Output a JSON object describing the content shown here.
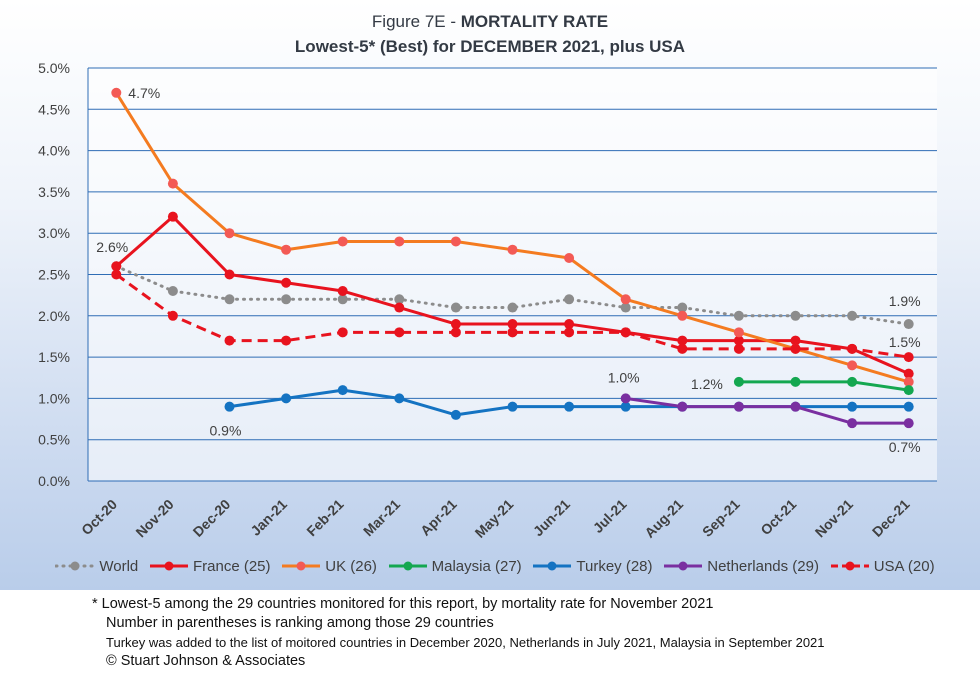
{
  "title_line1_prefix": "Figure 7E  - ",
  "title_line1_bold": "MORTALITY RATE",
  "title_line2": "Lowest-5* (Best) for DECEMBER 2021, plus USA",
  "notes": {
    "line1": "* Lowest-5 among the 29 countries monitored for this report, by mortality rate for November 2021",
    "line2": "Number in parentheses is ranking among those 29 countries",
    "line3": "Turkey was added to the list of moitored countries in December 2020, Netherlands in July 2021,  Malaysia in September 2021",
    "line4": "© Stuart Johnson & Associates"
  },
  "chart_data": {
    "type": "line",
    "categories": [
      "Oct-20",
      "Nov-20",
      "Dec-20",
      "Jan-21",
      "Feb-21",
      "Mar-21",
      "Apr-21",
      "May-21",
      "Jun-21",
      "Jul-21",
      "Aug-21",
      "Sep-21",
      "Oct-21",
      "Nov-21",
      "Dec-21"
    ],
    "ylim": [
      0,
      5.0
    ],
    "y_ticks": [
      "0.0%",
      "0.5%",
      "1.0%",
      "1.5%",
      "2.0%",
      "2.5%",
      "3.0%",
      "3.5%",
      "4.0%",
      "4.5%",
      "5.0%"
    ],
    "grid": true,
    "legend_position": "bottom",
    "series": [
      {
        "name": "World",
        "color": "#8c8c8c",
        "style": "dotted",
        "values": [
          2.6,
          2.3,
          2.2,
          2.2,
          2.2,
          2.2,
          2.1,
          2.1,
          2.2,
          2.1,
          2.1,
          2.0,
          2.0,
          2.0,
          1.9
        ]
      },
      {
        "name": "France (25)",
        "color": "#e8131e",
        "style": "solid",
        "values": [
          2.6,
          3.2,
          2.5,
          2.4,
          2.3,
          2.1,
          1.9,
          1.9,
          1.9,
          1.8,
          1.7,
          1.7,
          1.7,
          1.6,
          1.3
        ]
      },
      {
        "name": "UK (26)",
        "color": "#f47b20",
        "marker_color": "#f35a55",
        "style": "solid",
        "values": [
          4.7,
          3.6,
          3.0,
          2.8,
          2.9,
          2.9,
          2.9,
          2.8,
          2.7,
          2.2,
          2.0,
          1.8,
          1.6,
          1.4,
          1.2
        ]
      },
      {
        "name": "Malaysia (27)",
        "color": "#14a750",
        "style": "solid",
        "values": [
          null,
          null,
          null,
          null,
          null,
          null,
          null,
          null,
          null,
          null,
          null,
          1.2,
          1.2,
          1.2,
          1.1
        ]
      },
      {
        "name": "Turkey (28)",
        "color": "#1473c2",
        "style": "solid",
        "values": [
          null,
          null,
          0.9,
          1.0,
          1.1,
          1.0,
          0.8,
          0.9,
          0.9,
          0.9,
          0.9,
          0.9,
          0.9,
          0.9,
          0.9
        ]
      },
      {
        "name": "Netherlands (29)",
        "color": "#7a2fa0",
        "style": "solid",
        "values": [
          null,
          null,
          null,
          null,
          null,
          null,
          null,
          null,
          null,
          1.0,
          0.9,
          0.9,
          0.9,
          0.7,
          0.7
        ]
      },
      {
        "name": "USA (20)",
        "color": "#e8131e",
        "style": "dashed",
        "values": [
          2.5,
          2.0,
          1.7,
          1.7,
          1.8,
          1.8,
          1.8,
          1.8,
          1.8,
          1.8,
          1.6,
          1.6,
          1.6,
          1.6,
          1.5
        ]
      }
    ],
    "annotations": [
      {
        "text": "4.7%",
        "series": "UK (26)",
        "category": "Oct-20",
        "value": 4.7
      },
      {
        "text": "2.6%",
        "series": "World",
        "category": "Oct-20",
        "value": 2.6
      },
      {
        "text": "0.9%",
        "series": "Turkey (28)",
        "category": "Dec-20",
        "value": 0.9
      },
      {
        "text": "1.0%",
        "series": "Netherlands (29)",
        "category": "Jul-21",
        "value": 1.0
      },
      {
        "text": "1.2%",
        "series": "Malaysia (27)",
        "category": "Sep-21",
        "value": 1.2
      },
      {
        "text": "1.9%",
        "series": "World",
        "category": "Dec-21",
        "value": 1.9
      },
      {
        "text": "1.5%",
        "series": "USA (20)",
        "category": "Dec-21",
        "value": 1.5
      },
      {
        "text": "0.7%",
        "series": "Netherlands (29)",
        "category": "Dec-21",
        "value": 0.7
      }
    ]
  }
}
